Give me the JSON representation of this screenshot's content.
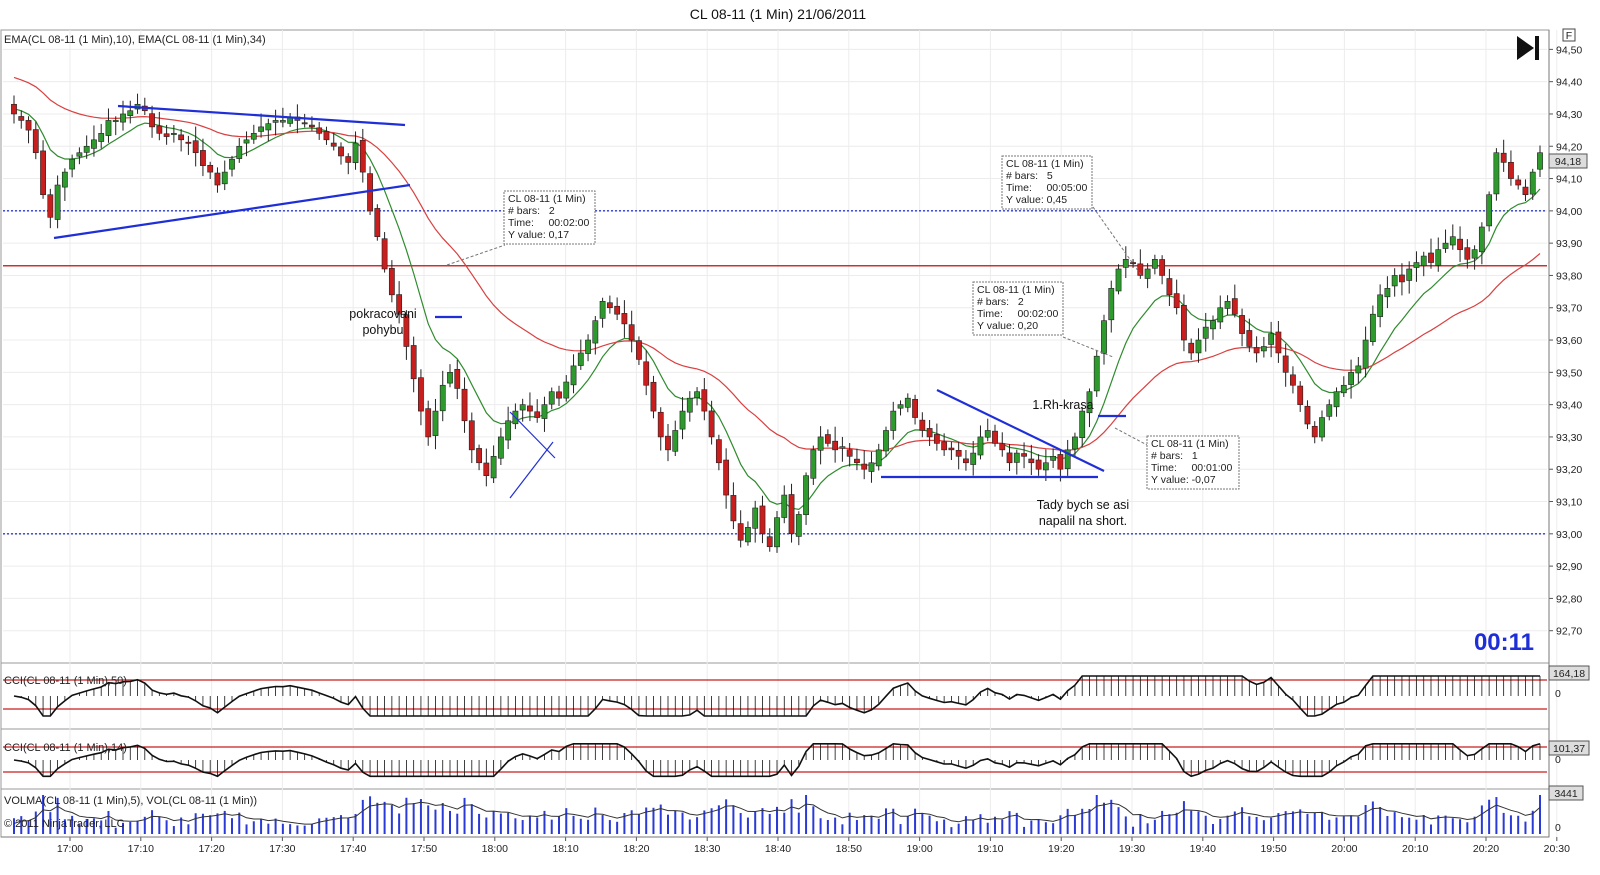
{
  "chart_data": [
    {
      "type": "candlestick",
      "title": "CL 08-11 (1 Min)  21/06/2011",
      "indicator_label": "EMA(CL 08-11 (1 Min),10), EMA(CL 08-11 (1 Min),34)",
      "ylim": [
        92.6,
        94.56
      ],
      "y_ticks": [
        "94,50",
        "94,40",
        "94,30",
        "94,20",
        "94,10",
        "94,00",
        "93,90",
        "93,80",
        "93,70",
        "93,60",
        "93,50",
        "93,40",
        "93,30",
        "93,20",
        "93,10",
        "93,00",
        "92,90",
        "92,80",
        "92,70"
      ],
      "y_tick_values": [
        94.5,
        94.4,
        94.3,
        94.2,
        94.1,
        94.0,
        93.9,
        93.8,
        93.7,
        93.6,
        93.5,
        93.4,
        93.3,
        93.2,
        93.1,
        93.0,
        92.9,
        92.8,
        92.7
      ],
      "x_ticks": [
        "17:00",
        "17:10",
        "17:20",
        "17:30",
        "17:40",
        "17:50",
        "18:00",
        "18:10",
        "18:20",
        "18:30",
        "18:40",
        "18:50",
        "19:00",
        "19:10",
        "19:20",
        "19:30",
        "19:40",
        "19:50",
        "20:00",
        "20:10",
        "20:20",
        "20:30"
      ],
      "last_price_label": "94,18",
      "last_price": 94.18,
      "horizontal_lines": [
        {
          "value": 93.83,
          "style": "solid",
          "color": "#c83232"
        },
        {
          "value": 94.0,
          "style": "dotted",
          "color": "#2a3ad6"
        },
        {
          "value": 93.0,
          "style": "dotted",
          "color": "#2a3ad6"
        }
      ],
      "closes": [
        94.3,
        94.28,
        94.25,
        94.18,
        94.05,
        93.98,
        94.08,
        94.12,
        94.16,
        94.18,
        94.2,
        94.22,
        94.24,
        94.28,
        94.28,
        94.3,
        94.31,
        94.33,
        94.31,
        94.26,
        94.24,
        94.23,
        94.24,
        94.22,
        94.21,
        94.18,
        94.14,
        94.12,
        94.08,
        94.12,
        94.16,
        94.2,
        94.22,
        94.24,
        94.26,
        94.27,
        94.28,
        94.28,
        94.29,
        94.28,
        94.27,
        94.26,
        94.24,
        94.22,
        94.2,
        94.17,
        94.15,
        94.21,
        94.12,
        94.0,
        93.92,
        93.82,
        93.74,
        93.68,
        93.58,
        93.48,
        93.38,
        93.3,
        93.38,
        93.46,
        93.5,
        93.45,
        93.35,
        93.26,
        93.22,
        93.18,
        93.24,
        93.3,
        93.35,
        93.38,
        93.4,
        93.38,
        93.36,
        93.4,
        93.44,
        93.42,
        93.47,
        93.52,
        93.56,
        93.6,
        93.66,
        93.72,
        93.7,
        93.68,
        93.65,
        93.6,
        93.54,
        93.46,
        93.38,
        93.3,
        93.26,
        93.32,
        93.38,
        93.42,
        93.44,
        93.38,
        93.3,
        93.22,
        93.12,
        93.04,
        92.98,
        93.02,
        93.08,
        93.0,
        92.96,
        93.05,
        93.12,
        93.0,
        93.06,
        93.18,
        93.26,
        93.3,
        93.28,
        93.26,
        93.27,
        93.24,
        93.22,
        93.2,
        93.22,
        93.26,
        93.32,
        93.38,
        93.4,
        93.42,
        93.36,
        93.32,
        93.3,
        93.28,
        93.26,
        93.26,
        93.24,
        93.22,
        93.25,
        93.3,
        93.32,
        93.28,
        93.26,
        93.22,
        93.25,
        93.24,
        93.22,
        93.2,
        93.22,
        93.24,
        93.2,
        93.26,
        93.3,
        93.38,
        93.44,
        93.55,
        93.66,
        93.76,
        93.82,
        93.85,
        93.84,
        93.8,
        93.82,
        93.85,
        93.8,
        93.74,
        93.7,
        93.6,
        93.56,
        93.6,
        93.64,
        93.66,
        93.7,
        93.72,
        93.68,
        93.62,
        93.58,
        93.56,
        93.58,
        93.62,
        93.56,
        93.5,
        93.46,
        93.4,
        93.34,
        93.3,
        93.36,
        93.4,
        93.44,
        93.46,
        93.5,
        93.52,
        93.6,
        93.68,
        93.74,
        93.76,
        93.8,
        93.78,
        93.82,
        93.84,
        93.86,
        93.84,
        93.88,
        93.9,
        93.92,
        93.88,
        93.85,
        93.88,
        93.95,
        94.05,
        94.18,
        94.15,
        94.1,
        94.08,
        94.05,
        94.12,
        94.18
      ]
    },
    {
      "type": "line",
      "title": "CCI(CL 08-11 (1 Min),50)",
      "value_label": "164,18",
      "zero_label": "0"
    },
    {
      "type": "line",
      "title": "CCI(CL 08-11 (1 Min),14)",
      "value_label": "101,37",
      "zero_label": "0"
    },
    {
      "type": "bar",
      "title": "VOLMA(CL 08-11 (1 Min),5), VOL(CL 08-11 (1 Min))",
      "value_label": "3441",
      "zero_label": "0"
    }
  ],
  "annotations": {
    "pokracovani_1": "pokracovani",
    "pokracovani_2": "pohybu",
    "rh": "1.Rh-krasa",
    "tady_1": "Tady bych se asi",
    "tady_2": "napalil na short."
  },
  "measure_boxes": [
    {
      "lines": [
        "CL 08-11 (1 Min)",
        "# bars:   2",
        "Time:     00:02:00",
        "Y value: 0,17"
      ]
    },
    {
      "lines": [
        "CL 08-11 (1 Min)",
        "# bars:   5",
        "Time:     00:05:00",
        "Y value: 0,45"
      ]
    },
    {
      "lines": [
        "CL 08-11 (1 Min)",
        "# bars:   2",
        "Time:     00:02:00",
        "Y value: 0,20"
      ]
    },
    {
      "lines": [
        "CL 08-11 (1 Min)",
        "# bars:   1",
        "Time:     00:01:00",
        "Y value: -0,07"
      ]
    }
  ],
  "timer": "00:11",
  "copyright": "© 2011 NinjaTrader, LLC",
  "f_button": "F",
  "colors": {
    "up": "#2e9a2e",
    "down": "#c81e1e",
    "ema_fast": "#2e8b2e",
    "ema_slow": "#d94040",
    "trend": "#1f2fd8",
    "timer": "#1f2fd8"
  },
  "icons": {
    "play_end": "skip-to-end-icon"
  }
}
